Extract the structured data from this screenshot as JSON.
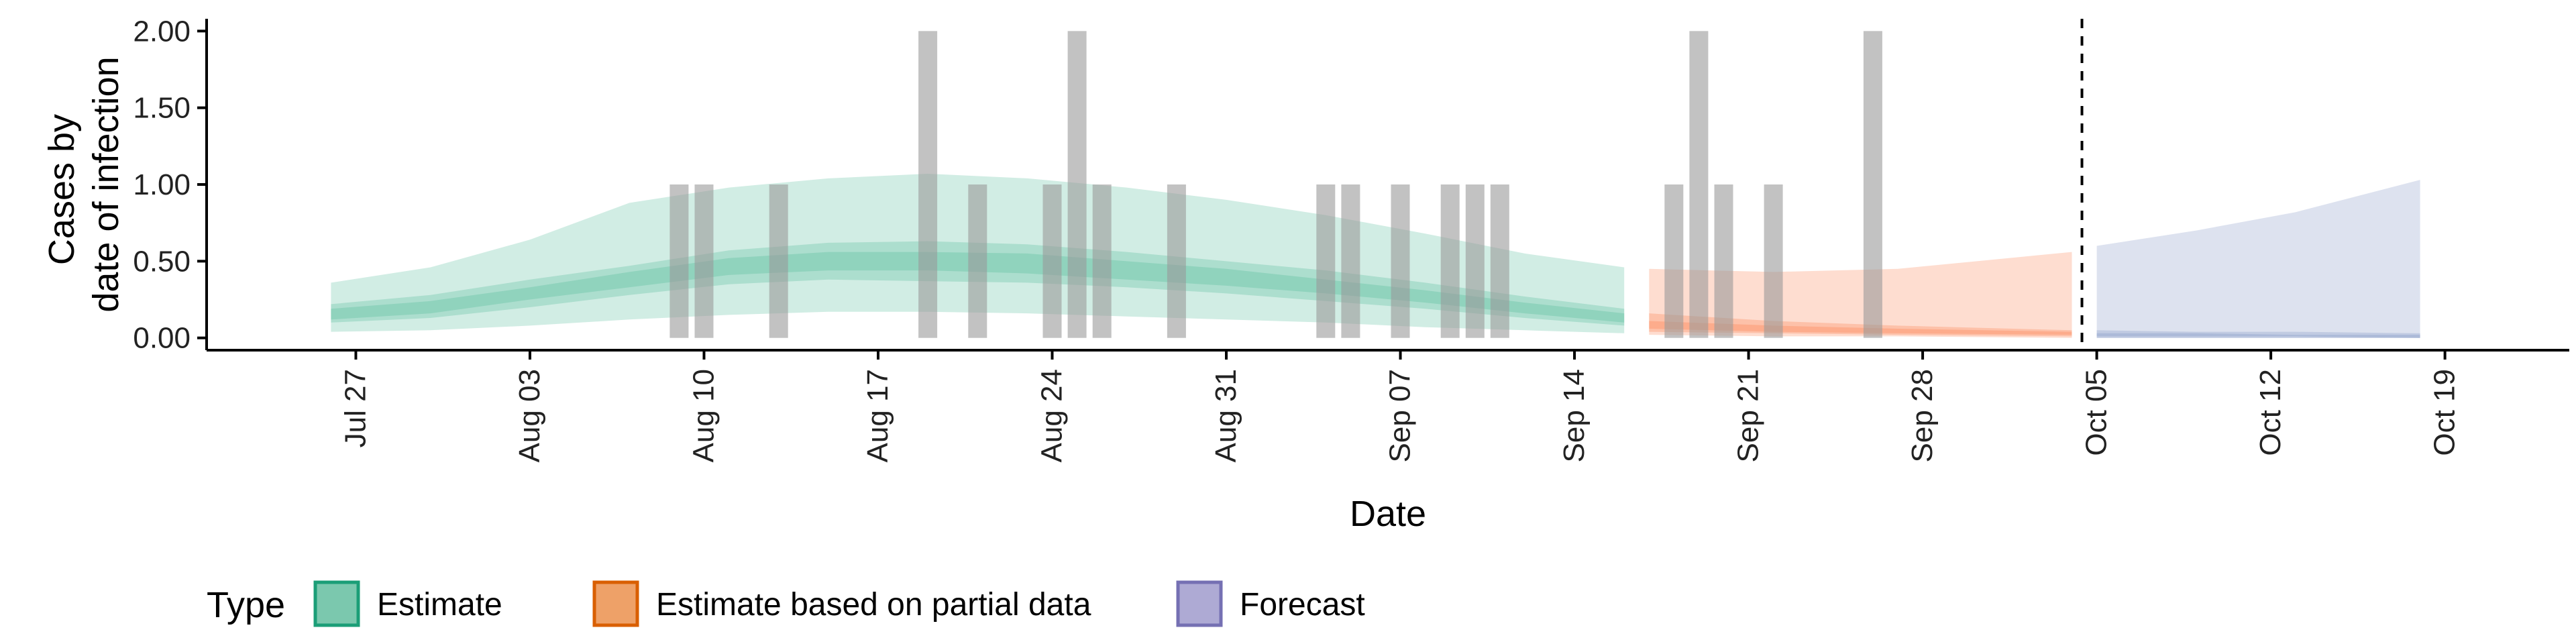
{
  "chart_data": {
    "type": "area",
    "xlabel": "Date",
    "ylabel_lines": [
      "Cases by",
      "date of infection"
    ],
    "ylim": [
      -0.08,
      2.08
    ],
    "xlim": [
      "2020-07-21",
      "2020-10-24"
    ],
    "y_ticks": [
      {
        "value": 0.0,
        "label": "0.00"
      },
      {
        "value": 0.5,
        "label": "0.50"
      },
      {
        "value": 1.0,
        "label": "1.00"
      },
      {
        "value": 1.5,
        "label": "1.50"
      },
      {
        "value": 2.0,
        "label": "2.00"
      }
    ],
    "x_ticks": [
      {
        "date": "2020-07-27",
        "label": "Jul 27"
      },
      {
        "date": "2020-08-03",
        "label": "Aug 03"
      },
      {
        "date": "2020-08-10",
        "label": "Aug 10"
      },
      {
        "date": "2020-08-17",
        "label": "Aug 17"
      },
      {
        "date": "2020-08-24",
        "label": "Aug 24"
      },
      {
        "date": "2020-08-31",
        "label": "Aug 31"
      },
      {
        "date": "2020-09-07",
        "label": "Sep 07"
      },
      {
        "date": "2020-09-14",
        "label": "Sep 14"
      },
      {
        "date": "2020-09-21",
        "label": "Sep 21"
      },
      {
        "date": "2020-09-28",
        "label": "Sep 28"
      },
      {
        "date": "2020-10-05",
        "label": "Oct 05"
      },
      {
        "date": "2020-10-12",
        "label": "Oct 12"
      },
      {
        "date": "2020-10-19",
        "label": "Oct 19"
      }
    ],
    "forecast_date": "2020-10-04",
    "bar_color": "#999999",
    "reported_cases": [
      {
        "date": "2020-08-09",
        "value": 1
      },
      {
        "date": "2020-08-10",
        "value": 1
      },
      {
        "date": "2020-08-13",
        "value": 1
      },
      {
        "date": "2020-08-19",
        "value": 2
      },
      {
        "date": "2020-08-21",
        "value": 1
      },
      {
        "date": "2020-08-24",
        "value": 1
      },
      {
        "date": "2020-08-25",
        "value": 2
      },
      {
        "date": "2020-08-26",
        "value": 1
      },
      {
        "date": "2020-08-29",
        "value": 1
      },
      {
        "date": "2020-09-04",
        "value": 1
      },
      {
        "date": "2020-09-05",
        "value": 1
      },
      {
        "date": "2020-09-07",
        "value": 1
      },
      {
        "date": "2020-09-09",
        "value": 1
      },
      {
        "date": "2020-09-10",
        "value": 1
      },
      {
        "date": "2020-09-11",
        "value": 1
      },
      {
        "date": "2020-09-18",
        "value": 1
      },
      {
        "date": "2020-09-19",
        "value": 2
      },
      {
        "date": "2020-09-20",
        "value": 1
      },
      {
        "date": "2020-09-22",
        "value": 1
      },
      {
        "date": "2020-09-26",
        "value": 2
      }
    ],
    "series": [
      {
        "name": "Estimate",
        "color": "#1b9e77",
        "fill": "#66c2a5",
        "points": [
          {
            "date": "2020-07-26",
            "outer": [
              0.04,
              0.36
            ],
            "mid": [
              0.1,
              0.22
            ],
            "inner": [
              0.12,
              0.19
            ]
          },
          {
            "date": "2020-07-30",
            "outer": [
              0.05,
              0.46
            ],
            "mid": [
              0.13,
              0.28
            ],
            "inner": [
              0.16,
              0.24
            ]
          },
          {
            "date": "2020-08-03",
            "outer": [
              0.08,
              0.64
            ],
            "mid": [
              0.2,
              0.38
            ],
            "inner": [
              0.25,
              0.33
            ]
          },
          {
            "date": "2020-08-07",
            "outer": [
              0.12,
              0.88
            ],
            "mid": [
              0.28,
              0.47
            ],
            "inner": [
              0.33,
              0.43
            ]
          },
          {
            "date": "2020-08-11",
            "outer": [
              0.15,
              0.98
            ],
            "mid": [
              0.35,
              0.57
            ],
            "inner": [
              0.41,
              0.52
            ]
          },
          {
            "date": "2020-08-15",
            "outer": [
              0.17,
              1.04
            ],
            "mid": [
              0.38,
              0.62
            ],
            "inner": [
              0.44,
              0.56
            ]
          },
          {
            "date": "2020-08-19",
            "outer": [
              0.17,
              1.07
            ],
            "mid": [
              0.37,
              0.63
            ],
            "inner": [
              0.44,
              0.56
            ]
          },
          {
            "date": "2020-08-23",
            "outer": [
              0.16,
              1.04
            ],
            "mid": [
              0.36,
              0.61
            ],
            "inner": [
              0.42,
              0.55
            ]
          },
          {
            "date": "2020-08-27",
            "outer": [
              0.14,
              0.98
            ],
            "mid": [
              0.33,
              0.56
            ],
            "inner": [
              0.38,
              0.5
            ]
          },
          {
            "date": "2020-08-31",
            "outer": [
              0.12,
              0.9
            ],
            "mid": [
              0.29,
              0.5
            ],
            "inner": [
              0.34,
              0.45
            ]
          },
          {
            "date": "2020-09-04",
            "outer": [
              0.1,
              0.8
            ],
            "mid": [
              0.24,
              0.44
            ],
            "inner": [
              0.29,
              0.38
            ]
          },
          {
            "date": "2020-09-08",
            "outer": [
              0.07,
              0.68
            ],
            "mid": [
              0.19,
              0.36
            ],
            "inner": [
              0.23,
              0.31
            ]
          },
          {
            "date": "2020-09-12",
            "outer": [
              0.05,
              0.55
            ],
            "mid": [
              0.13,
              0.27
            ],
            "inner": [
              0.16,
              0.23
            ]
          },
          {
            "date": "2020-09-16",
            "outer": [
              0.03,
              0.46
            ],
            "mid": [
              0.08,
              0.19
            ],
            "inner": [
              0.1,
              0.16
            ]
          }
        ]
      },
      {
        "name": "Estimate based on partial data",
        "color": "#d95f02",
        "fill": "#fc8d62",
        "points": [
          {
            "date": "2020-09-17",
            "outer": [
              0.02,
              0.45
            ],
            "mid": [
              0.04,
              0.16
            ],
            "inner": [
              0.06,
              0.11
            ]
          },
          {
            "date": "2020-09-22",
            "outer": [
              0.01,
              0.43
            ],
            "mid": [
              0.03,
              0.11
            ],
            "inner": [
              0.04,
              0.08
            ]
          },
          {
            "date": "2020-09-27",
            "outer": [
              0.01,
              0.45
            ],
            "mid": [
              0.02,
              0.08
            ],
            "inner": [
              0.03,
              0.06
            ]
          },
          {
            "date": "2020-10-04",
            "outer": [
              0.0,
              0.56
            ],
            "mid": [
              0.01,
              0.05
            ],
            "inner": [
              0.02,
              0.04
            ]
          }
        ]
      },
      {
        "name": "Forecast",
        "color": "#7570b3",
        "fill": "#8da0cb",
        "points": [
          {
            "date": "2020-10-05",
            "outer": [
              0.0,
              0.6
            ],
            "mid": [
              0.0,
              0.05
            ],
            "inner": [
              0.01,
              0.03
            ]
          },
          {
            "date": "2020-10-09",
            "outer": [
              0.0,
              0.7
            ],
            "mid": [
              0.0,
              0.04
            ],
            "inner": [
              0.01,
              0.03
            ]
          },
          {
            "date": "2020-10-13",
            "outer": [
              0.0,
              0.82
            ],
            "mid": [
              0.0,
              0.04
            ],
            "inner": [
              0.01,
              0.02
            ]
          },
          {
            "date": "2020-10-18",
            "outer": [
              0.0,
              1.03
            ],
            "mid": [
              0.0,
              0.03
            ],
            "inner": [
              0.0,
              0.02
            ]
          }
        ]
      }
    ],
    "legend": {
      "title": "Type",
      "position": "bottom",
      "items": [
        {
          "label": "Estimate",
          "fill": "#7bc8ae",
          "stroke": "#1b9e77"
        },
        {
          "label": "Estimate based on partial data",
          "fill": "#eea168",
          "stroke": "#d95f02"
        },
        {
          "label": "Forecast",
          "fill": "#aeaad4",
          "stroke": "#7570b3"
        }
      ]
    }
  }
}
